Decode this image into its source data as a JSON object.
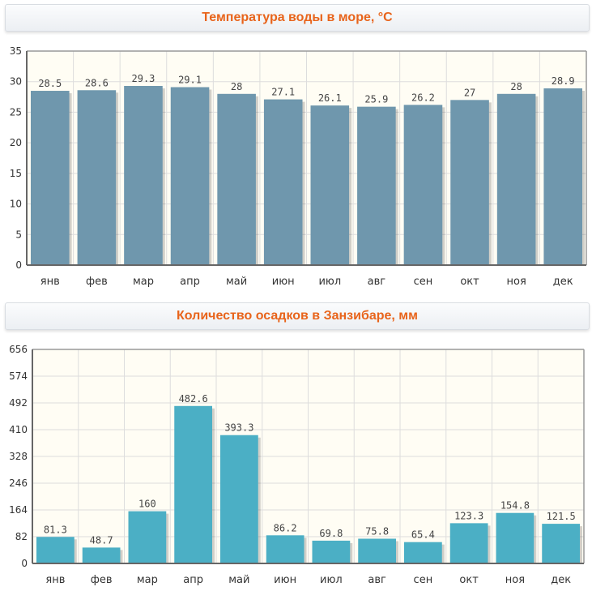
{
  "colors": {
    "title": "#e8641b",
    "plot_background": "#fffdf4",
    "bar_temperature": "#6f97ad",
    "bar_precipitation": "#4bafc5",
    "grid": "#dddddd"
  },
  "chart_data": [
    {
      "type": "bar",
      "title": "Температура воды в море, °C",
      "categories": [
        "янв",
        "фев",
        "мар",
        "апр",
        "май",
        "июн",
        "июл",
        "авг",
        "сен",
        "окт",
        "ноя",
        "дек"
      ],
      "values": [
        28.5,
        28.6,
        29.3,
        29.1,
        28,
        27.1,
        26.1,
        25.9,
        26.2,
        27,
        28,
        28.9
      ],
      "ylim": [
        0,
        35
      ],
      "yticks": [
        0,
        5,
        10,
        15,
        20,
        25,
        30,
        35
      ],
      "grid": true
    },
    {
      "type": "bar",
      "title": "Количество осадков в Занзибаре, мм",
      "categories": [
        "янв",
        "фев",
        "мар",
        "апр",
        "май",
        "июн",
        "июл",
        "авг",
        "сен",
        "окт",
        "ноя",
        "дек"
      ],
      "values": [
        81.3,
        48.7,
        160,
        482.6,
        393.3,
        86.2,
        69.8,
        75.8,
        65.4,
        123.3,
        154.8,
        121.5
      ],
      "ylim": [
        0,
        656
      ],
      "yticks": [
        0,
        82,
        164,
        246,
        328,
        410,
        492,
        574,
        656
      ],
      "grid": true
    }
  ]
}
